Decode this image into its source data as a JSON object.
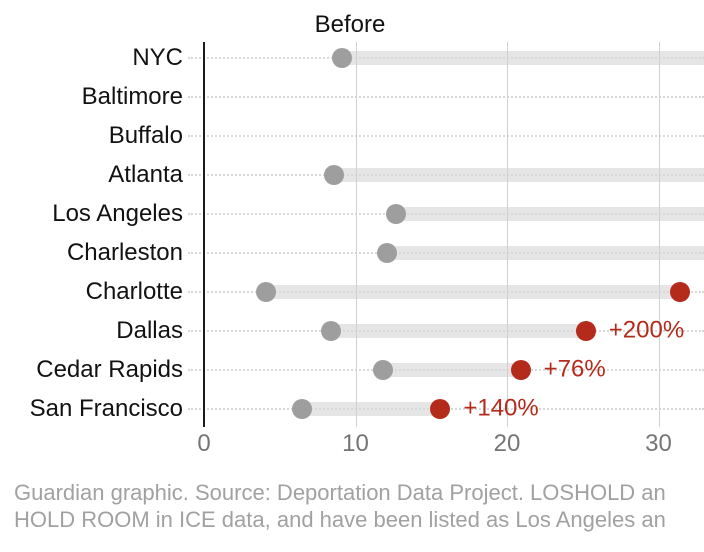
{
  "chart_data": {
    "type": "lollipop",
    "title": "Before",
    "xlabel": "",
    "ylabel": "",
    "x_axis": {
      "ticks": [
        0,
        10,
        20,
        30
      ],
      "min": 0,
      "visible_max": 33,
      "gridlines": true
    },
    "series_meaning": {
      "gray_dot": "Before value",
      "red_dot": "After value (rows without a visible red dot extend past the right edge)"
    },
    "rows": [
      {
        "city": "NYC",
        "before": 9.1,
        "after": null,
        "change": null
      },
      {
        "city": "Baltimore",
        "before": null,
        "after": null,
        "change": null
      },
      {
        "city": "Buffalo",
        "before": null,
        "after": null,
        "change": null
      },
      {
        "city": "Atlanta",
        "before": 8.6,
        "after": null,
        "change": null
      },
      {
        "city": "Los Angeles",
        "before": 12.7,
        "after": null,
        "change": null
      },
      {
        "city": "Charleston",
        "before": 12.1,
        "after": null,
        "change": null
      },
      {
        "city": "Charlotte",
        "before": 4.1,
        "after": 31.4,
        "change": null
      },
      {
        "city": "Dallas",
        "before": 8.4,
        "after": 25.2,
        "change": "+200%"
      },
      {
        "city": "Cedar Rapids",
        "before": 11.8,
        "after": 20.9,
        "change": "+76%"
      },
      {
        "city": "San Francisco",
        "before": 6.5,
        "after": 15.6,
        "change": "+140%"
      }
    ]
  },
  "footer": {
    "line1": "Guardian graphic. Source: Deportation Data Project. LOSHOLD an",
    "line2": "HOLD ROOM in ICE data, and have been listed as Los Angeles an"
  },
  "colors": {
    "after_red": "#b42b1b",
    "before_gray": "#9e9e9e",
    "bar_gray": "#e5e5e5",
    "leader_dotted": "#d8d8d8",
    "gridline": "#d0d0d0",
    "zero_axis": "#1a1a1a",
    "text_dark": "#121212",
    "tick_text": "#757575",
    "footer_text": "#a1a1a1"
  }
}
